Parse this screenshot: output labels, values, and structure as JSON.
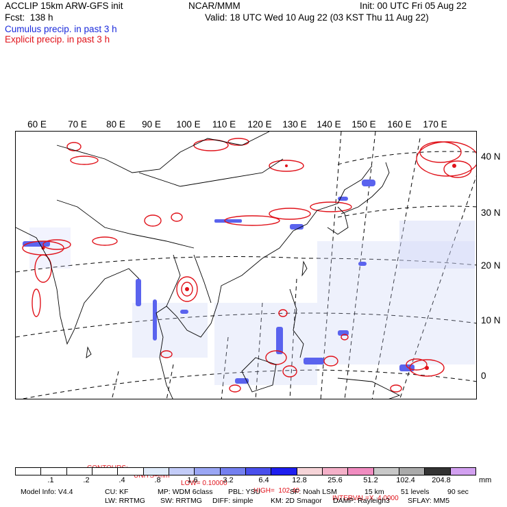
{
  "header": {
    "model": "ACCLIP 15km ARW-GFS init",
    "org": "NCAR/MMM",
    "init": "Init: 00 UTC Fri 05 Aug 22",
    "fcst": "Fcst:  138 h",
    "valid": "Valid: 18 UTC Wed 10 Aug 22 (03 KST Thu 11 Aug 22)",
    "legend_cumulus": "Cumulus precip. in past 3 h",
    "legend_explicit": "Explicit precip. in past 3 h",
    "colors": {
      "cumulus": "#1a2adb",
      "explicit": "#e0121a"
    }
  },
  "map": {
    "lon_labels": [
      "60 E",
      "70 E",
      "80 E",
      "90 E",
      "100 E",
      "110 E",
      "120 E",
      "130 E",
      "140 E",
      "150 E",
      "160 E",
      "170 E"
    ],
    "lat_labels": [
      "40 N",
      "30 N",
      "20 N",
      "10 N",
      "0"
    ]
  },
  "contours": {
    "title": "CONTOURS:",
    "units": "UNITS=mm",
    "low": "LOW= 0.10000",
    "high": "HIGH=  102.40",
    "interval": "INTERVAL=X  4.0000"
  },
  "colorbar": {
    "colors": [
      "#ffffff",
      "#ffffff",
      "#ffffff",
      "#ffffff",
      "#ffffff",
      "#e0ebfa",
      "#c3ccf8",
      "#9aa6f4",
      "#7480f0",
      "#4a50ec",
      "#1e1eef",
      "#f6d4d8",
      "#f4b0c8",
      "#f08cc0",
      "#c8c8c8",
      "#aaaaaa",
      "#333333",
      "#d2a0f0"
    ],
    "labels": [
      ".1",
      ".2",
      ".4",
      ".8",
      "1.6",
      "3.2",
      "6.4",
      "12.8",
      "25.6",
      "51.2",
      "102.4",
      "204.8"
    ],
    "unit": "mm"
  },
  "model_info": {
    "line1": [
      "Model Info: V4.4",
      "CU: KF",
      "MP: WDM 6class",
      "PBL: YSU",
      "SF: Noah LSM",
      "15 km",
      "51 levels",
      "90 sec"
    ],
    "line2": [
      "LW: RRTMG",
      "SW: RRTMG",
      "DIFF: simple",
      "KM: 2D Smagor",
      "DAMP: Rayleigh3",
      "SFLAY: MM5"
    ]
  }
}
